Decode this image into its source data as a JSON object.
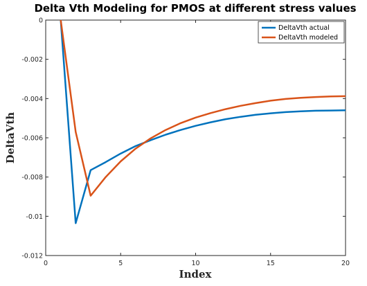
{
  "chart_data": {
    "type": "line",
    "title": "Delta Vth Modeling for PMOS at different stress values",
    "xlabel": "Index",
    "ylabel": "DeltaVth",
    "xlim": [
      0,
      20
    ],
    "ylim": [
      -0.012,
      0
    ],
    "xticks": [
      "0",
      "5",
      "10",
      "15",
      "20"
    ],
    "yticks": [
      "0",
      "-0.002",
      "-0.004",
      "-0.006",
      "-0.008",
      "-0.01",
      "-0.012"
    ],
    "legend_position": "top-right",
    "grid": false,
    "series": [
      {
        "name": "DeltaVth actual",
        "color": "#0072BD",
        "x": [
          1,
          2,
          3,
          4,
          5,
          6,
          7,
          8,
          9,
          10,
          11,
          12,
          13,
          14,
          15,
          16,
          17,
          18,
          19,
          20
        ],
        "y": [
          0,
          -0.01035,
          -0.00765,
          -0.00724,
          -0.0068,
          -0.00642,
          -0.00612,
          -0.00584,
          -0.0056,
          -0.00539,
          -0.00521,
          -0.00505,
          -0.00493,
          -0.00483,
          -0.00475,
          -0.00469,
          -0.00465,
          -0.00462,
          -0.00461,
          -0.0046
        ]
      },
      {
        "name": "DeltaVth modeled",
        "color": "#D95319",
        "x": [
          1,
          2,
          3,
          4,
          5,
          6,
          7,
          8,
          9,
          10,
          11,
          12,
          13,
          14,
          15,
          16,
          17,
          18,
          19,
          20
        ],
        "y": [
          0,
          -0.0057,
          -0.00895,
          -0.008,
          -0.0072,
          -0.00655,
          -0.00603,
          -0.0056,
          -0.00525,
          -0.00497,
          -0.00474,
          -0.00454,
          -0.00437,
          -0.00423,
          -0.00411,
          -0.00402,
          -0.00396,
          -0.00392,
          -0.00389,
          -0.00388
        ]
      }
    ]
  }
}
